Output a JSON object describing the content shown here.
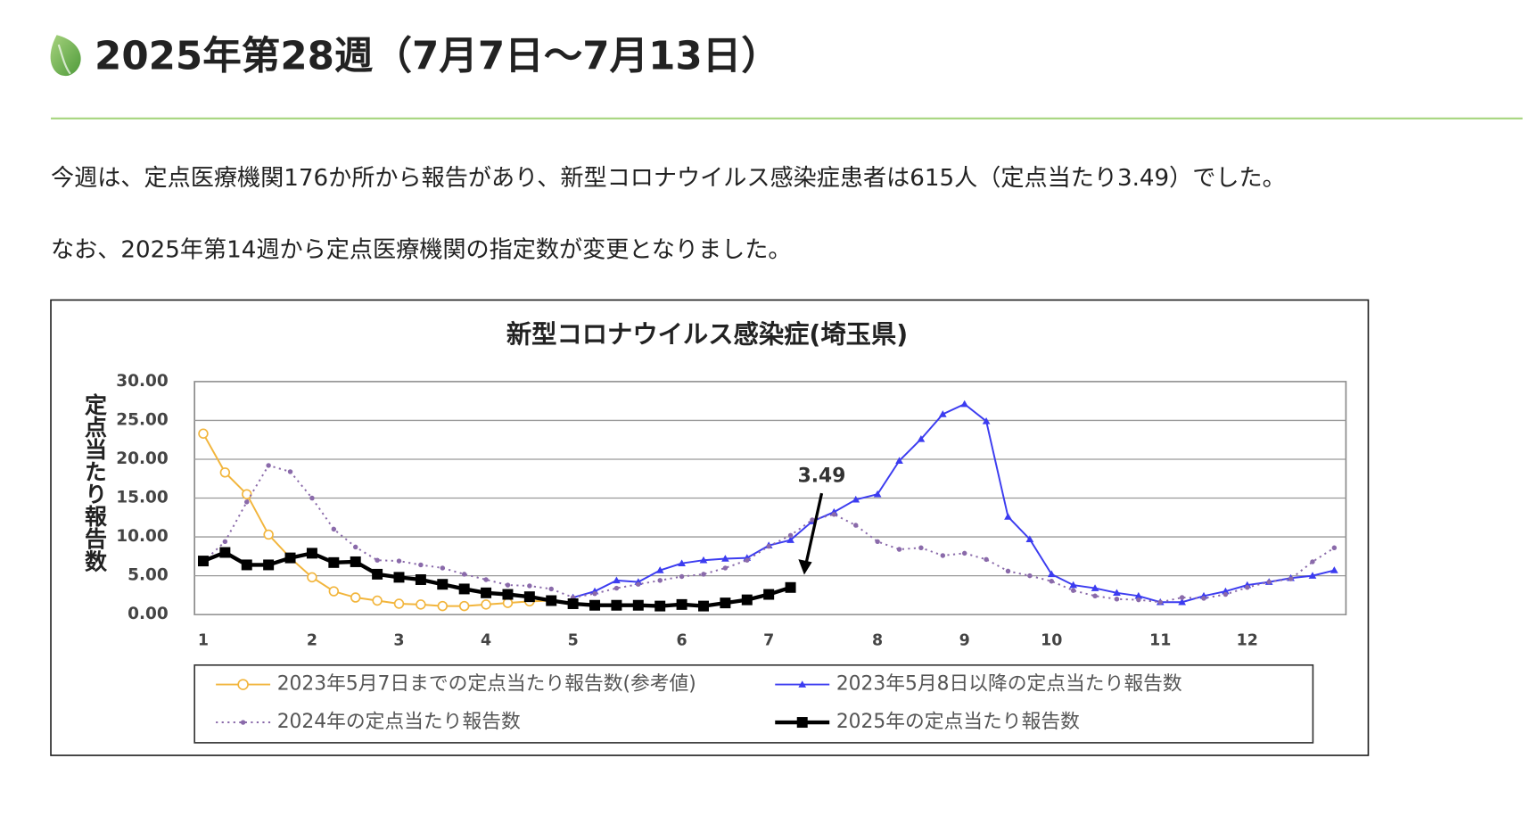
{
  "heading": "2025年第28週（7月7日～7月13日）",
  "paragraphs": [
    "今週は、定点医療機関176か所から報告があり、新型コロナウイルス感染症患者は615人（定点当たり3.49）でした。",
    "なお、2025年第14週から定点医療機関の指定数が変更となりました。"
  ],
  "chart_data": {
    "type": "line",
    "title": "新型コロナウイルス感染症(埼玉県)",
    "y_label": "定点当たり報告数",
    "annotation": "3.49",
    "categories": [
      "1",
      null,
      null,
      null,
      null,
      "2",
      null,
      null,
      null,
      "3",
      null,
      null,
      null,
      "4",
      null,
      null,
      null,
      "5",
      null,
      null,
      null,
      null,
      "6",
      null,
      null,
      null,
      "7",
      null,
      null,
      null,
      null,
      "8",
      null,
      null,
      null,
      "9",
      null,
      null,
      null,
      "10",
      null,
      null,
      null,
      null,
      "11",
      null,
      null,
      null,
      "12",
      null,
      null,
      null,
      null
    ],
    "ylim": [
      0,
      30
    ],
    "yticks": [
      {
        "value": 0,
        "label": "0.00"
      },
      {
        "value": 5,
        "label": "5.00"
      },
      {
        "value": 10,
        "label": "10.00"
      },
      {
        "value": 15,
        "label": "15.00"
      },
      {
        "value": 20,
        "label": "20.00"
      },
      {
        "value": 25,
        "label": "25.00"
      },
      {
        "value": 30,
        "label": "30.00"
      }
    ],
    "grid": true,
    "series": [
      {
        "name": "2023年5月7日までの定点当たり報告数(参考値)",
        "color": "#f2b53c",
        "marker": "circle",
        "values": [
          23.3,
          18.3,
          15.5,
          10.3,
          7.3,
          4.8,
          3.0,
          2.2,
          1.8,
          1.4,
          1.3,
          1.1,
          1.1,
          1.3,
          1.5,
          1.7,
          1.8,
          null,
          null,
          null,
          null,
          null,
          null,
          null,
          null,
          null,
          null,
          null,
          null,
          null,
          null,
          null,
          null,
          null,
          null,
          null,
          null,
          null,
          null,
          null,
          null,
          null,
          null,
          null,
          null,
          null,
          null,
          null,
          null,
          null,
          null,
          null,
          null
        ]
      },
      {
        "name": "2023年5月8日以降の定点当たり報告数",
        "color": "#3c3cf0",
        "marker": "triangle",
        "values": [
          null,
          null,
          null,
          null,
          null,
          null,
          null,
          null,
          null,
          null,
          null,
          null,
          null,
          null,
          null,
          null,
          null,
          2.2,
          3.0,
          4.4,
          4.2,
          5.7,
          6.6,
          7.0,
          7.2,
          7.3,
          8.9,
          9.6,
          12.0,
          13.2,
          14.8,
          15.5,
          19.8,
          22.6,
          25.8,
          27.1,
          24.9,
          12.6,
          9.7,
          5.2,
          3.8,
          3.4,
          2.8,
          2.4,
          1.6,
          1.6,
          2.4,
          3.0,
          3.8,
          4.2,
          4.7,
          5.0,
          5.7
        ]
      },
      {
        "name": "2024年の定点当たり報告数",
        "color": "#8a6aaa",
        "marker": "dot",
        "dash": true,
        "values": [
          6.8,
          9.4,
          14.5,
          19.2,
          18.4,
          15.0,
          11.0,
          8.7,
          7.0,
          6.9,
          6.4,
          6.0,
          5.2,
          4.5,
          3.8,
          3.7,
          3.3,
          2.2,
          2.7,
          3.4,
          3.9,
          4.4,
          4.9,
          5.2,
          6.0,
          7.0,
          8.8,
          10.2,
          12.2,
          12.9,
          11.5,
          9.4,
          8.4,
          8.6,
          7.6,
          7.9,
          7.1,
          5.6,
          5.0,
          4.3,
          3.1,
          2.4,
          2.0,
          1.9,
          1.6,
          2.2,
          2.1,
          2.6,
          3.5,
          4.2,
          4.6,
          6.8,
          8.6
        ]
      },
      {
        "name": "2025年の定点当たり報告数",
        "color": "#000000",
        "marker": "square",
        "values": [
          6.9,
          8.0,
          6.4,
          6.4,
          7.3,
          7.9,
          6.7,
          6.8,
          5.2,
          4.8,
          4.5,
          3.9,
          3.3,
          2.8,
          2.6,
          2.3,
          1.8,
          1.4,
          1.2,
          1.2,
          1.2,
          1.1,
          1.3,
          1.1,
          1.5,
          1.9,
          2.6,
          3.49,
          null,
          null,
          null,
          null,
          null,
          null,
          null,
          null,
          null,
          null,
          null,
          null,
          null,
          null,
          null,
          null,
          null,
          null,
          null,
          null,
          null,
          null,
          null,
          null,
          null
        ]
      }
    ]
  }
}
